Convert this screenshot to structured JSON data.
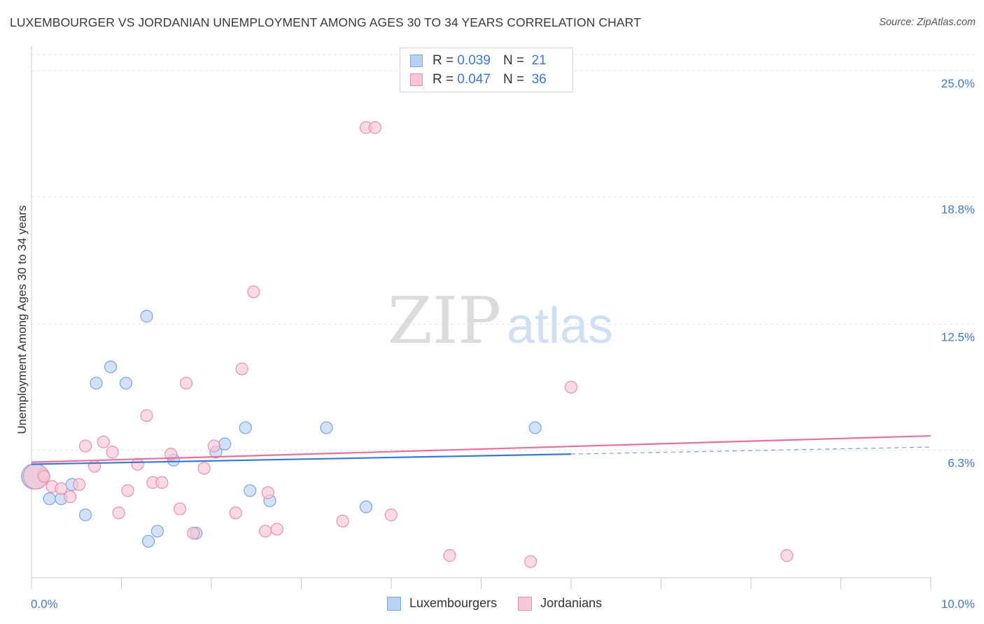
{
  "title": "LUXEMBOURGER VS JORDANIAN UNEMPLOYMENT AMONG AGES 30 TO 34 YEARS CORRELATION CHART",
  "source": "Source: ZipAtlas.com",
  "watermark": {
    "zip": "ZIP",
    "atlas": "atlas"
  },
  "legend": {
    "r_label": "R =",
    "n_label": "N =",
    "series": [
      {
        "name": "Luxembourgers",
        "r": "0.039",
        "n": "21",
        "fill": "#b8d3f5",
        "stroke": "#7aa6e0"
      },
      {
        "name": "Jordanians",
        "r": "0.047",
        "n": "36",
        "fill": "#f9c6d6",
        "stroke": "#e890ae"
      }
    ]
  },
  "colors": {
    "blue_line": "#3a78d8",
    "pink_line": "#e8709a",
    "axis_label": "#3c78d8",
    "grid": "#e3e3e3"
  },
  "chart_data": {
    "type": "scatter",
    "title": "LUXEMBOURGER VS JORDANIAN UNEMPLOYMENT AMONG AGES 30 TO 34 YEARS CORRELATION CHART",
    "xlabel": "",
    "ylabel": "Unemployment Among Ages 30 to 34 years",
    "xlim": [
      0,
      10
    ],
    "ylim": [
      0,
      25.8
    ],
    "x_tick_labels": [
      "0.0%",
      "10.0%"
    ],
    "y_ticks": [
      6.3,
      12.5,
      18.8,
      25.0
    ],
    "y_tick_labels": [
      "6.3%",
      "12.5%",
      "18.8%",
      "25.0%"
    ],
    "series": [
      {
        "name": "Luxembourgers",
        "points": [
          {
            "x": 0.03,
            "y": 5.0,
            "big": true
          },
          {
            "x": 0.13,
            "y": 5.1
          },
          {
            "x": 0.2,
            "y": 3.9
          },
          {
            "x": 0.33,
            "y": 3.9
          },
          {
            "x": 0.45,
            "y": 4.6
          },
          {
            "x": 0.6,
            "y": 3.1
          },
          {
            "x": 0.72,
            "y": 9.6
          },
          {
            "x": 0.88,
            "y": 10.4
          },
          {
            "x": 1.05,
            "y": 9.6
          },
          {
            "x": 1.3,
            "y": 1.8
          },
          {
            "x": 1.28,
            "y": 12.9
          },
          {
            "x": 1.4,
            "y": 2.3
          },
          {
            "x": 1.58,
            "y": 5.8
          },
          {
            "x": 1.83,
            "y": 2.2
          },
          {
            "x": 2.05,
            "y": 6.2
          },
          {
            "x": 2.15,
            "y": 6.6
          },
          {
            "x": 2.38,
            "y": 7.4
          },
          {
            "x": 2.43,
            "y": 4.3
          },
          {
            "x": 2.65,
            "y": 3.8
          },
          {
            "x": 3.28,
            "y": 7.4
          },
          {
            "x": 3.72,
            "y": 3.5
          },
          {
            "x": 5.6,
            "y": 7.4
          }
        ],
        "trend": {
          "x0": 0,
          "y0": 5.6,
          "x1": 6.0,
          "y1": 6.1,
          "dash_x1": 10.0,
          "dash_y1": 6.45
        }
      },
      {
        "name": "Jordanians",
        "points": [
          {
            "x": 0.05,
            "y": 5.0,
            "big": true
          },
          {
            "x": 0.14,
            "y": 5.0
          },
          {
            "x": 0.23,
            "y": 4.5
          },
          {
            "x": 0.33,
            "y": 4.4
          },
          {
            "x": 0.43,
            "y": 4.0
          },
          {
            "x": 0.53,
            "y": 4.6
          },
          {
            "x": 0.6,
            "y": 6.5
          },
          {
            "x": 0.7,
            "y": 5.5
          },
          {
            "x": 0.8,
            "y": 6.7
          },
          {
            "x": 0.9,
            "y": 6.2
          },
          {
            "x": 0.97,
            "y": 3.2
          },
          {
            "x": 1.07,
            "y": 4.3
          },
          {
            "x": 1.18,
            "y": 5.6
          },
          {
            "x": 1.28,
            "y": 8.0
          },
          {
            "x": 1.35,
            "y": 4.7
          },
          {
            "x": 1.45,
            "y": 4.7
          },
          {
            "x": 1.55,
            "y": 6.1
          },
          {
            "x": 1.65,
            "y": 3.4
          },
          {
            "x": 1.72,
            "y": 9.6
          },
          {
            "x": 1.8,
            "y": 2.2
          },
          {
            "x": 1.92,
            "y": 5.4
          },
          {
            "x": 2.03,
            "y": 6.5
          },
          {
            "x": 2.27,
            "y": 3.2
          },
          {
            "x": 2.34,
            "y": 10.3
          },
          {
            "x": 2.47,
            "y": 14.1
          },
          {
            "x": 2.6,
            "y": 2.3
          },
          {
            "x": 2.63,
            "y": 4.2
          },
          {
            "x": 2.73,
            "y": 2.4
          },
          {
            "x": 3.46,
            "y": 2.8
          },
          {
            "x": 3.72,
            "y": 22.2
          },
          {
            "x": 3.82,
            "y": 22.2
          },
          {
            "x": 4.0,
            "y": 3.1
          },
          {
            "x": 4.65,
            "y": 1.1
          },
          {
            "x": 5.55,
            "y": 0.8
          },
          {
            "x": 6.0,
            "y": 9.4
          },
          {
            "x": 8.4,
            "y": 1.1
          }
        ],
        "trend": {
          "x0": 0,
          "y0": 5.7,
          "x1": 10.0,
          "y1": 7.0
        }
      }
    ]
  }
}
